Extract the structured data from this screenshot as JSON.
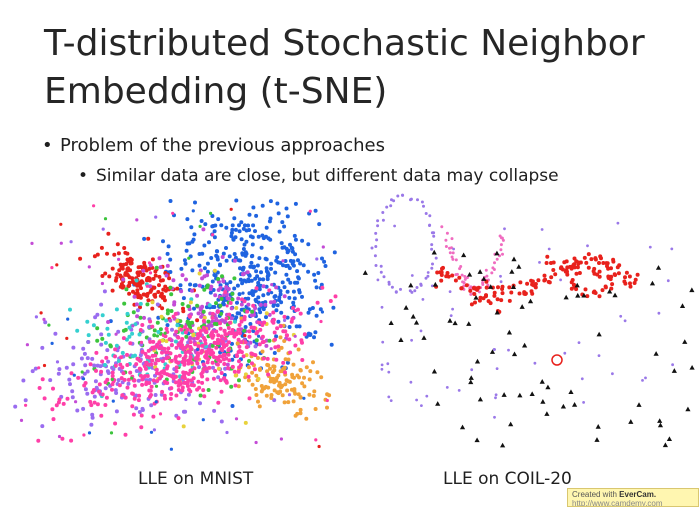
{
  "slide": {
    "title_line1": "T-distributed Stochastic Neighbor",
    "title_line2": "Embedding (t-SNE)",
    "bullet1": "Problem of the previous approaches",
    "bullet2": "Similar data are close, but different data may collapse",
    "caption_left": "LLE on MNIST",
    "caption_right": "LLE on COIL-20"
  },
  "watermark": {
    "prefix": "Created with",
    "brand": "EverCam.",
    "url": "http://www.camdemy.com"
  },
  "colors": {
    "mnist": [
      "#e8211c",
      "#1f63e0",
      "#ff3fa8",
      "#c44bd6",
      "#9a6cf0",
      "#3cc43c",
      "#f0a23a",
      "#35d0d0",
      "#e8d23c",
      "#7a7a7a"
    ],
    "coil_red": "#e8211c",
    "coil_pink": "#f06cc0",
    "coil_purple": "#9a78e8",
    "coil_black": "#111111"
  }
}
